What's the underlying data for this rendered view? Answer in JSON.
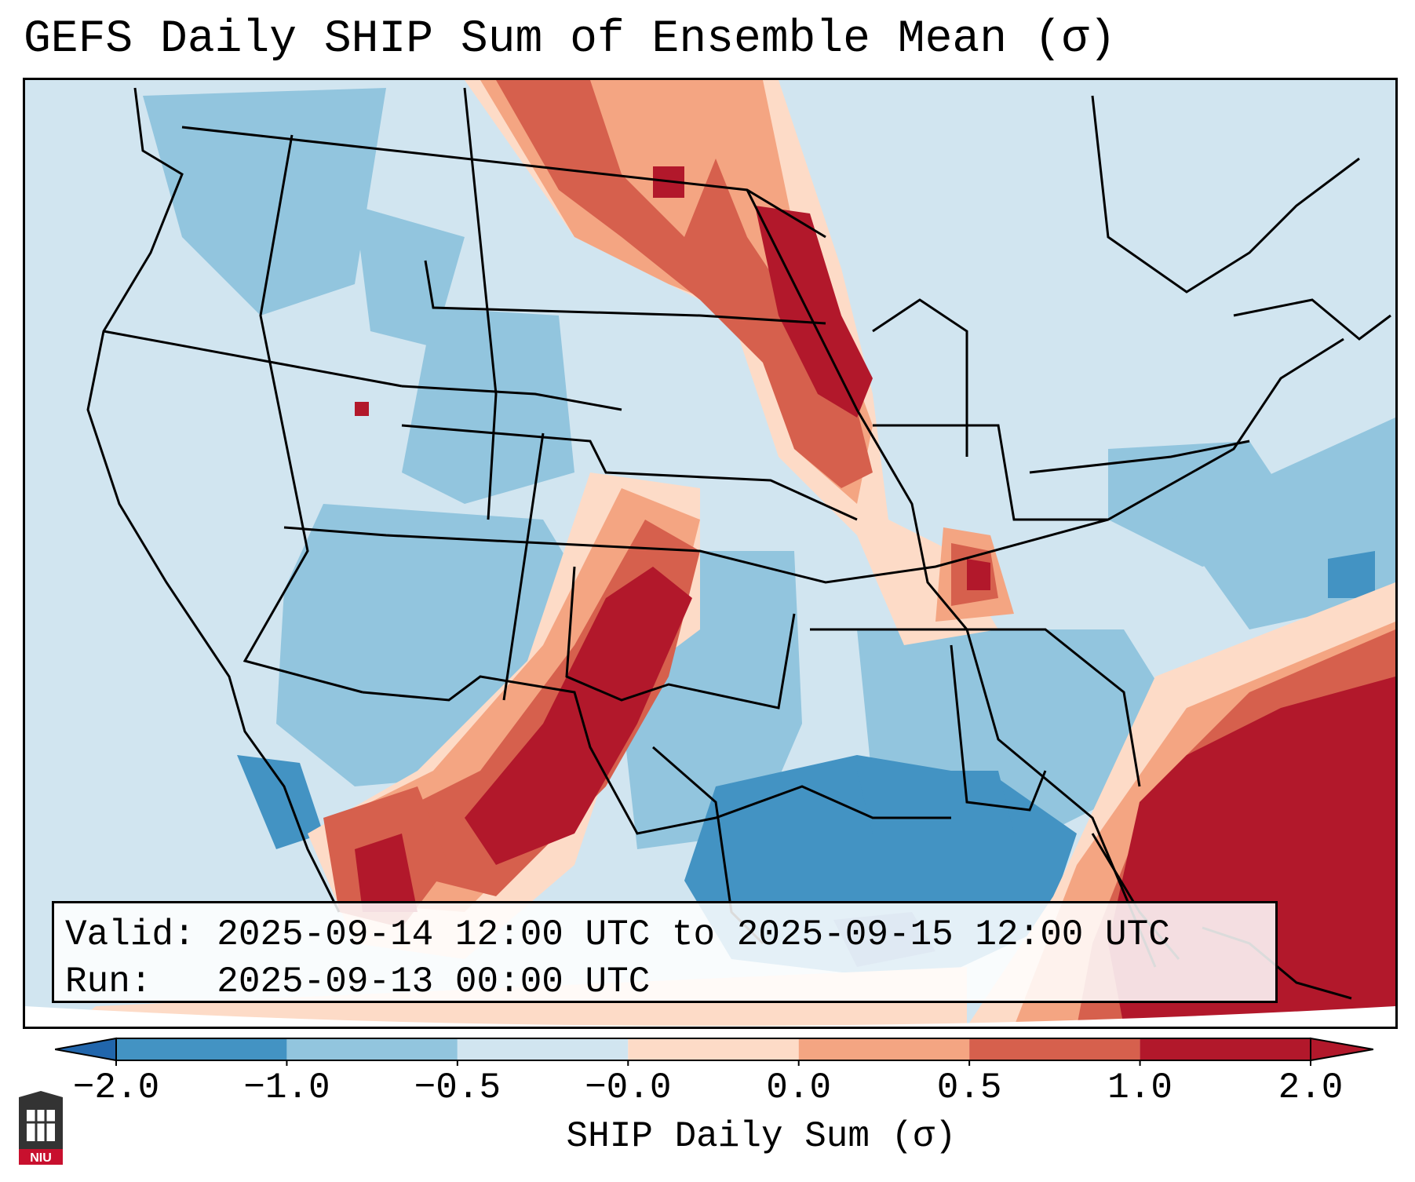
{
  "title": "GEFS Daily SHIP Sum of Ensemble Mean (σ)",
  "info": {
    "valid_line": "Valid: 2025-09-14 12:00 UTC to 2025-09-15 12:00 UTC",
    "run_line": "Run:   2025-09-13 00:00 UTC"
  },
  "colorbar": {
    "label": "SHIP Daily Sum (σ)",
    "ticks": [
      "−2.0",
      "−1.0",
      "−0.5",
      "−0.0",
      "0.0",
      "0.5",
      "1.0",
      "2.0"
    ],
    "colors": [
      "#4393c3",
      "#92c5de",
      "#d1e5f0",
      "#fddbc7",
      "#f4a582",
      "#d6604d",
      "#b2182b"
    ],
    "under_color": "#2166ac",
    "over_color": "#b2182b"
  },
  "logo": {
    "text": "NIU"
  }
}
